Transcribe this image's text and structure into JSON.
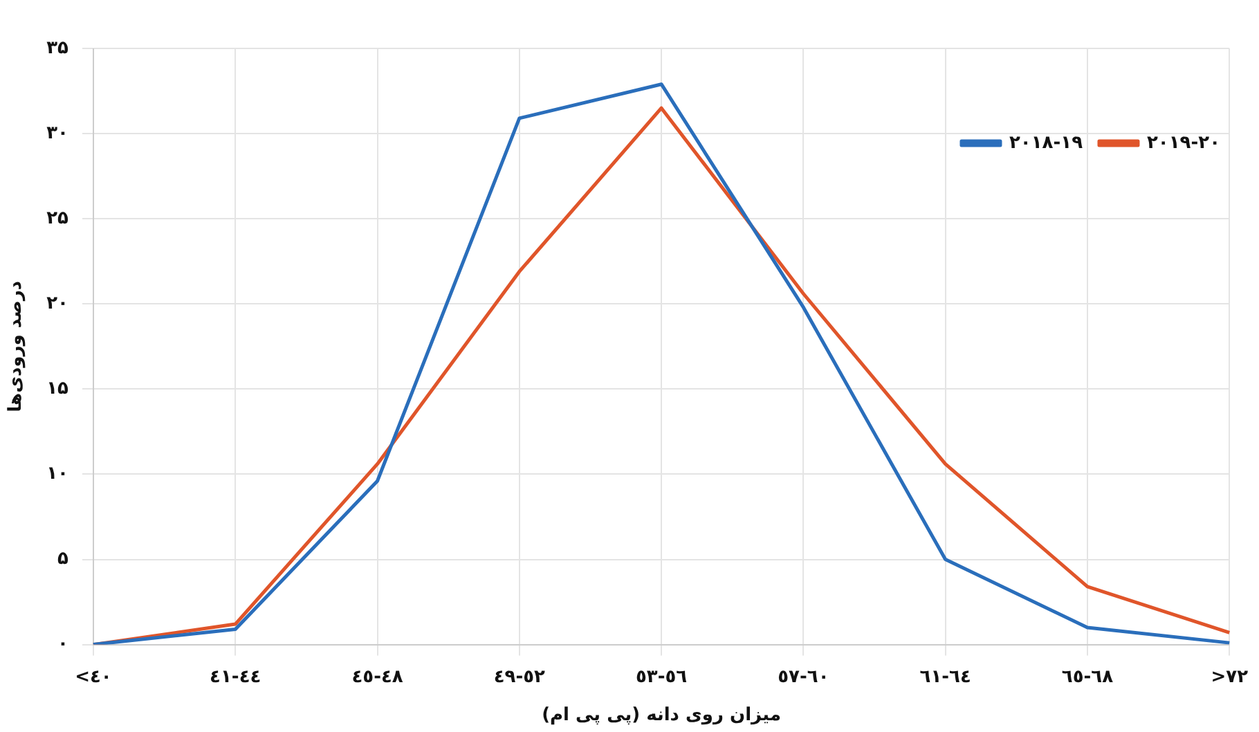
{
  "chart_data": {
    "type": "line",
    "xlabel": "میزان روی دانه (پی پی ام)",
    "ylabel": "درصد ورودی‌ها",
    "categories": [
      "<٤٠",
      "٤١-٤٤",
      "٤٥-٤٨",
      "٤٩-٥٢",
      "٥٣-٥٦",
      "٥٧-٦٠",
      "٦١-٦٤",
      "٦٥-٦٨",
      ">٧٢"
    ],
    "series": [
      {
        "name": "۲۰۱۸-۱۹",
        "color": "#2a6ebb",
        "values": [
          0,
          0.9,
          9.6,
          30.9,
          32.9,
          19.8,
          5.0,
          1.0,
          0.1
        ]
      },
      {
        "name": "۲۰۱۹-۲۰",
        "color": "#e0552a",
        "values": [
          0,
          1.2,
          10.6,
          21.9,
          31.5,
          20.6,
          10.6,
          3.4,
          0.7
        ]
      }
    ],
    "ylim": [
      0,
      35
    ],
    "yticks": [
      {
        "value": 0,
        "label": "۰"
      },
      {
        "value": 5,
        "label": "۵"
      },
      {
        "value": 10,
        "label": "۱۰"
      },
      {
        "value": 15,
        "label": "۱۵"
      },
      {
        "value": 20,
        "label": "۲۰"
      },
      {
        "value": 25,
        "label": "۲۵"
      },
      {
        "value": 30,
        "label": "۳۰"
      },
      {
        "value": 35,
        "label": "۳۵"
      }
    ],
    "grid": true,
    "legend": "top right",
    "marker": "none",
    "line_style": "solid"
  }
}
